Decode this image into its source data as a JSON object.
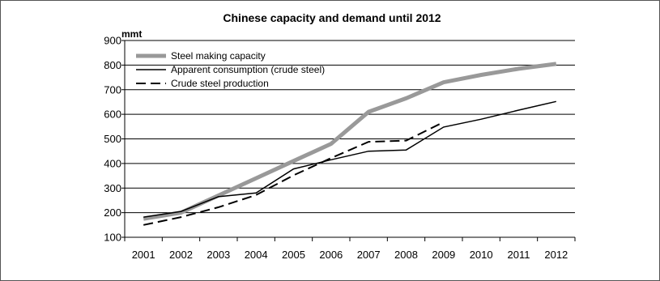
{
  "chart_data": {
    "type": "line",
    "title": "Chinese capacity and demand until 2012",
    "ylabel": "mmt",
    "ylim": [
      100,
      900
    ],
    "yticks": [
      "100",
      "200",
      "300",
      "400",
      "500",
      "600",
      "700",
      "800",
      "900"
    ],
    "grid": "horizontal",
    "legend_position": "top-left",
    "categories": [
      "2001",
      "2002",
      "2003",
      "2004",
      "2005",
      "2006",
      "2007",
      "2008",
      "2009",
      "2010",
      "2011",
      "2012"
    ],
    "series": [
      {
        "name": "Steel making capacity",
        "color": "#999999",
        "style": "solid-thick",
        "x": [
          2001,
          2002,
          2003,
          2004,
          2005,
          2006,
          2007,
          2008,
          2009,
          2010,
          2011,
          2012
        ],
        "values": [
          175,
          200,
          270,
          340,
          410,
          480,
          610,
          665,
          730,
          760,
          785,
          805
        ]
      },
      {
        "name": "Apparent consumption (crude steel)",
        "color": "#000000",
        "style": "solid",
        "x": [
          2001,
          2002,
          2003,
          2004,
          2005,
          2006,
          2007,
          2008,
          2009,
          2010,
          2011,
          2012
        ],
        "values": [
          182,
          205,
          265,
          280,
          378,
          415,
          450,
          455,
          548,
          580,
          617,
          652
        ]
      },
      {
        "name": "Crude steel production",
        "color": "#000000",
        "style": "dashed",
        "x": [
          2001,
          2002,
          2003,
          2004,
          2005,
          2006,
          2007,
          2008,
          2009
        ],
        "values": [
          150,
          182,
          222,
          272,
          352,
          422,
          488,
          493,
          568
        ]
      }
    ]
  }
}
